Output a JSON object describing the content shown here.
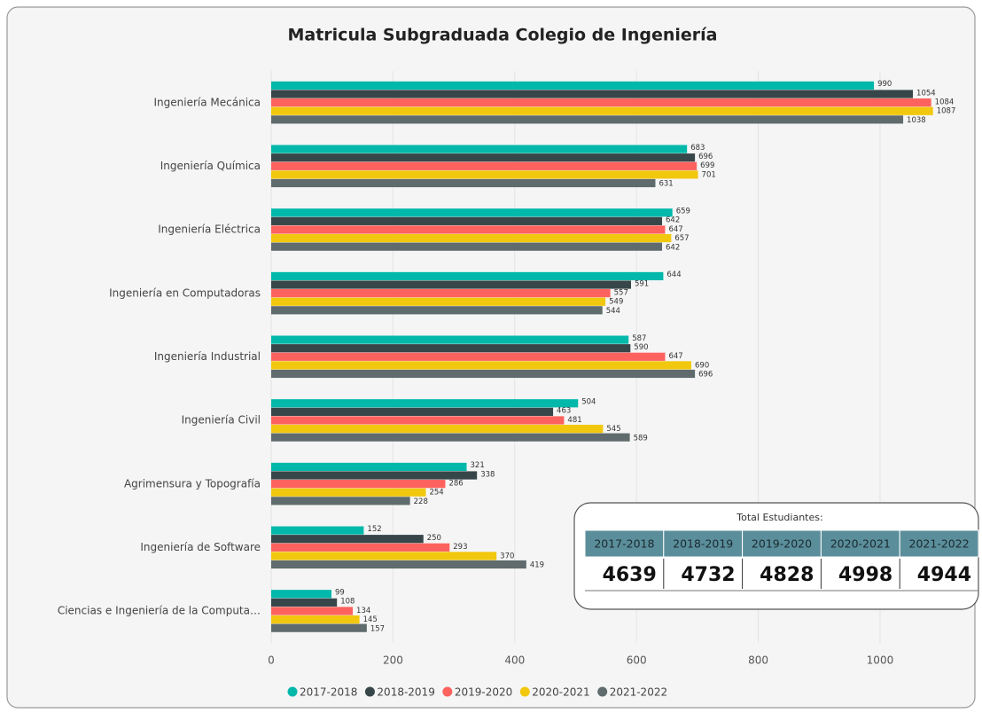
{
  "chart_data": {
    "type": "bar",
    "orientation": "horizontal",
    "title": "Matricula Subgraduada Colegio de Ingeniería",
    "categories": [
      "Ingeniería Mecánica",
      "Ingeniería Química",
      "Ingeniería Eléctrica",
      "Ingeniería en Computadoras",
      "Ingeniería Industrial",
      "Ingeniería Civil",
      "Agrimensura y Topografía",
      "Ingeniería de Software",
      "Ciencias e Ingeniería de la Computa…"
    ],
    "series": [
      {
        "name": "2017-2018",
        "color": "#01B8AA",
        "values": [
          990,
          683,
          659,
          644,
          587,
          504,
          321,
          152,
          99
        ]
      },
      {
        "name": "2018-2019",
        "color": "#374649",
        "values": [
          1054,
          696,
          642,
          591,
          590,
          463,
          338,
          250,
          108
        ]
      },
      {
        "name": "2019-2020",
        "color": "#FD625E",
        "values": [
          1084,
          699,
          647,
          557,
          647,
          481,
          286,
          293,
          134
        ]
      },
      {
        "name": "2020-2021",
        "color": "#F2C80F",
        "values": [
          1087,
          701,
          657,
          549,
          690,
          545,
          254,
          370,
          145
        ]
      },
      {
        "name": "2021-2022",
        "color": "#5F6B6D",
        "values": [
          1038,
          631,
          642,
          544,
          696,
          589,
          228,
          419,
          157
        ]
      }
    ],
    "xlim": [
      0,
      1150
    ],
    "xticks": [
      0,
      200,
      400,
      600,
      800,
      1000
    ],
    "grid": true,
    "legend": "bottom"
  },
  "summary_table": {
    "title": "Total Estudiantes:",
    "headers": [
      "2017-2018",
      "2018-2019",
      "2019-2020",
      "2020-2021",
      "2021-2022"
    ],
    "values": [
      4639,
      4732,
      4828,
      4998,
      4944
    ]
  }
}
